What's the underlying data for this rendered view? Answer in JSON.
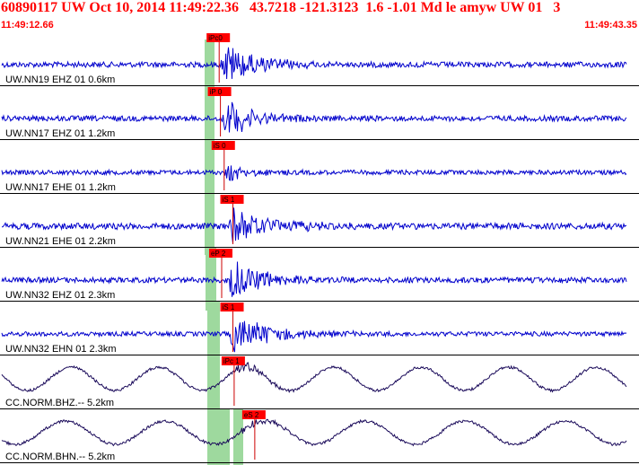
{
  "header": {
    "title": "60890117 UW Oct 10, 2014 11:49:22.36   43.7218 -121.3123  1.6 -1.01 Md le amyw UW 01   3",
    "time_start": "11:49:12.66",
    "time_end": "11:49:43.35"
  },
  "colors": {
    "header_text": "#ff0000",
    "trace_short_period": "#0000cc",
    "trace_broadband": "#1a0a5a",
    "pick_box": "#ff0000",
    "pick_line": "#cc0000",
    "window_band": "#9ed99e",
    "separator": "#000000"
  },
  "traces": [
    {
      "label": "UW.NN19 EHZ 01 0.6km",
      "pick": "iPc0",
      "pick_time_frac": 0.348,
      "onset_frac": 0.35,
      "decay": 0.055,
      "amp": 26,
      "noise": 3.0,
      "kind": "sp"
    },
    {
      "label": "UW.NN17 EHZ 01 1.2km",
      "pick": "iP 0",
      "pick_time_frac": 0.35,
      "onset_frac": 0.352,
      "decay": 0.05,
      "amp": 24,
      "noise": 3.0,
      "kind": "sp"
    },
    {
      "label": "UW.NN17 EHE 01 1.2km",
      "pick": "iS 0",
      "pick_time_frac": 0.356,
      "onset_frac": 0.356,
      "decay": 0.04,
      "amp": 12,
      "noise": 2.5,
      "kind": "sp"
    },
    {
      "label": "UW.NN21 EHE 01 2.2km",
      "pick": "iS 1",
      "pick_time_frac": 0.37,
      "onset_frac": 0.362,
      "decay": 0.06,
      "amp": 24,
      "noise": 3.5,
      "kind": "sp"
    },
    {
      "label": "UW.NN32 EHZ 01 2.3km",
      "pick": "eP 2",
      "pick_time_frac": 0.352,
      "onset_frac": 0.358,
      "decay": 0.06,
      "amp": 26,
      "noise": 3.0,
      "kind": "sp"
    },
    {
      "label": "UW.NN32 EHN 01 2.3km",
      "pick": "iS 1",
      "pick_time_frac": 0.37,
      "onset_frac": 0.364,
      "decay": 0.06,
      "amp": 26,
      "noise": 2.5,
      "kind": "sp"
    },
    {
      "label": "CC.NORM.BHZ.-- 5.2km",
      "pick": "iPc 1",
      "pick_time_frac": 0.372,
      "onset_frac": 0.37,
      "decay": 0.04,
      "amp": 8,
      "noise": 1.5,
      "kind": "bb"
    },
    {
      "label": "CC.NORM.BHN.-- 5.2km",
      "pick": "eS 2",
      "pick_time_frac": 0.405,
      "onset_frac": 0.38,
      "decay": 0.04,
      "amp": 6,
      "noise": 1.5,
      "kind": "bb"
    }
  ]
}
